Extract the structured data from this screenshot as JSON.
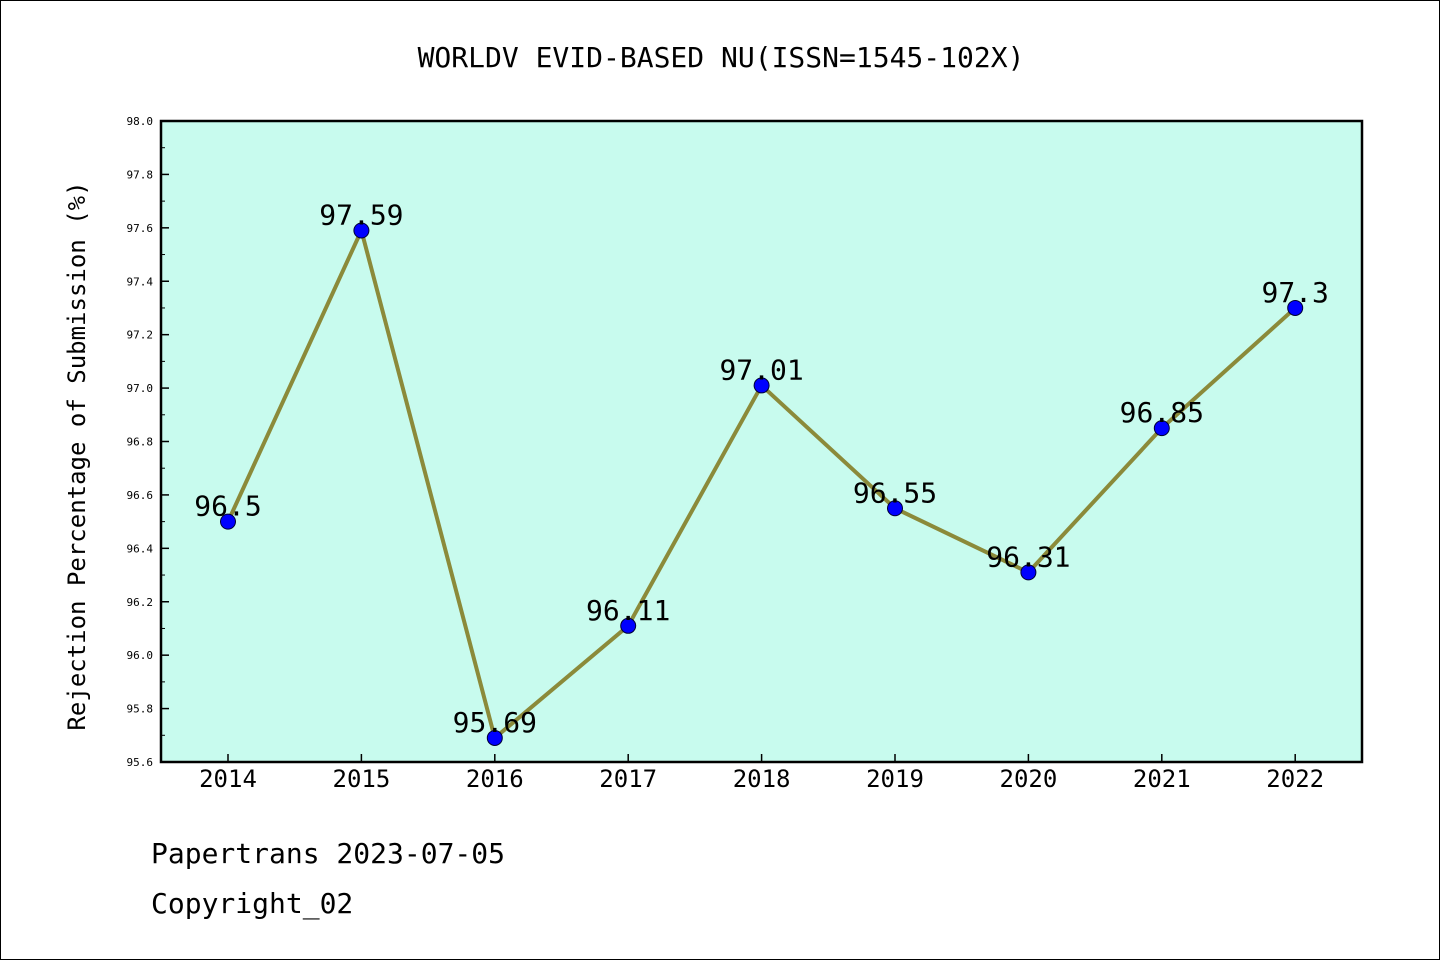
{
  "chart_data": {
    "type": "line",
    "title": "WORLDV EVID-BASED NU(ISSN=1545-102X)",
    "xlabel": "",
    "ylabel": "Rejection Percentage of Submission (%)",
    "categories": [
      "2014",
      "2015",
      "2016",
      "2017",
      "2018",
      "2019",
      "2020",
      "2021",
      "2022"
    ],
    "series": [
      {
        "values": [
          96.5,
          97.59,
          95.69,
          96.11,
          97.01,
          96.55,
          96.31,
          96.85,
          97.3
        ],
        "labels": [
          "96.5",
          "97.59",
          "95.69",
          "96.11",
          "97.01",
          "96.55",
          "96.31",
          "96.85",
          "97.3"
        ],
        "line_color": "#8b8a3a",
        "marker_color": "#0000ff"
      }
    ],
    "ylim": [
      95.6,
      98.0
    ],
    "y_ticks": [
      "95.6",
      "95.8",
      "96.0",
      "96.2",
      "96.4",
      "96.6",
      "96.8",
      "97.0",
      "97.2",
      "97.4",
      "97.6",
      "97.8",
      "98.0"
    ],
    "plot_background": "#c8fbee",
    "grid": false,
    "legend": "none"
  },
  "footer": {
    "line1": "Papertrans 2023-07-05",
    "line2": "Copyright_02"
  }
}
